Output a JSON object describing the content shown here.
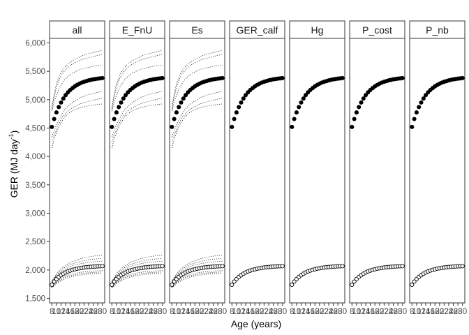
{
  "chart_data": {
    "type": "scatter",
    "facets": [
      "all",
      "E_FnU",
      "Es",
      "GER_calf",
      "Hg",
      "P_cost",
      "P_nb"
    ],
    "xlabel": "Age (years)",
    "ylabel_main": "GER (MJ day",
    "ylabel_sup": "-1",
    "ylabel_close": ")",
    "x_tick_labels": [
      "8",
      "10",
      "12",
      "14",
      "16",
      "18",
      "20",
      "22",
      "24",
      "26",
      "28",
      "30"
    ],
    "xlim": [
      7,
      31
    ],
    "ylim": [
      1420,
      6080
    ],
    "y_ticks": [
      1500,
      2000,
      2500,
      3000,
      3500,
      4000,
      4500,
      5000,
      5500,
      6000
    ],
    "y_tick_labels": [
      "1,500",
      "2,000",
      "2,500",
      "3,000",
      "3,500",
      "4,000",
      "4,500",
      "5,000",
      "5,500",
      "6,000"
    ],
    "x": [
      8,
      9,
      10,
      11,
      12,
      13,
      14,
      15,
      16,
      17,
      18,
      19,
      20,
      21,
      22,
      23,
      24,
      25,
      26,
      27,
      28,
      29,
      30
    ],
    "series": [
      {
        "marker": "filled",
        "values": [
          4520,
          4660,
          4775,
          4870,
          4950,
          5020,
          5080,
          5130,
          5170,
          5205,
          5235,
          5260,
          5282,
          5300,
          5315,
          5328,
          5340,
          5350,
          5358,
          5365,
          5370,
          5375,
          5380
        ]
      },
      {
        "marker": "open",
        "values": [
          1740,
          1795,
          1840,
          1877,
          1908,
          1934,
          1956,
          1974,
          1989,
          2002,
          2013,
          2022,
          2030,
          2037,
          2043,
          2048,
          2052,
          2056,
          2059,
          2062,
          2064,
          2066,
          2068
        ]
      }
    ],
    "uncertainty_facets": [
      "all",
      "E_FnU",
      "Es"
    ],
    "uncertainty": [
      {
        "upper": [
          4850,
          5100,
          5280,
          5400,
          5480,
          5540,
          5590,
          5630,
          5660,
          5690,
          5710,
          5730,
          5750,
          5770,
          5790,
          5800,
          5810,
          5820,
          5830,
          5840,
          5850,
          5860,
          5870
        ],
        "lower": [
          4150,
          4300,
          4420,
          4520,
          4600,
          4660,
          4710,
          4750,
          4780,
          4800,
          4820,
          4840,
          4855,
          4865,
          4875,
          4885,
          4895,
          4900,
          4905,
          4910,
          4915,
          4920,
          4925
        ]
      },
      {
        "upper": [
          4800,
          4950,
          5080,
          5180,
          5260,
          5320,
          5370,
          5410,
          5440,
          5470,
          5490,
          5510,
          5525,
          5540,
          5550,
          5560,
          5570,
          5580,
          5590,
          5595,
          5600,
          5605,
          5610
        ],
        "lower": [
          4350,
          4450,
          4560,
          4650,
          4720,
          4790,
          4840,
          4880,
          4920,
          4950,
          4980,
          5000,
          5030,
          5050,
          5060,
          5080,
          5090,
          5100,
          5110,
          5120,
          5130,
          5140,
          5150
        ]
      },
      {
        "upper": [
          4830,
          5050,
          5220,
          5340,
          5420,
          5480,
          5530,
          5570,
          5600,
          5630,
          5650,
          5670,
          5690,
          5705,
          5720,
          5730,
          5740,
          5750,
          5760,
          5770,
          5780,
          5790,
          5800
        ],
        "lower": [
          4250,
          4380,
          4480,
          4570,
          4650,
          4710,
          4760,
          4800,
          4830,
          4860,
          4880,
          4900,
          4920,
          4935,
          4950,
          4960,
          4970,
          4980,
          4990,
          5000,
          5010,
          5020,
          5030
        ]
      },
      {
        "upper": [
          1800,
          1870,
          1930,
          1980,
          2020,
          2055,
          2085,
          2110,
          2130,
          2150,
          2165,
          2180,
          2192,
          2203,
          2213,
          2222,
          2230,
          2237,
          2243,
          2249,
          2254,
          2258,
          2262
        ],
        "lower": [
          1680,
          1720,
          1755,
          1785,
          1810,
          1830,
          1848,
          1862,
          1875,
          1886,
          1895,
          1903,
          1910,
          1916,
          1921,
          1925,
          1929,
          1932,
          1935,
          1938,
          1940,
          1942,
          1944
        ]
      },
      {
        "upper": [
          1780,
          1840,
          1890,
          1930,
          1965,
          1995,
          2020,
          2040,
          2058,
          2073,
          2086,
          2097,
          2107,
          2115,
          2122,
          2128,
          2134,
          2139,
          2143,
          2147,
          2150,
          2153,
          2156
        ],
        "lower": [
          1700,
          1750,
          1790,
          1825,
          1852,
          1875,
          1893,
          1908,
          1921,
          1932,
          1941,
          1948,
          1955,
          1961,
          1966,
          1970,
          1974,
          1977,
          1980,
          1983,
          1985,
          1987,
          1989
        ]
      },
      {
        "upper": [
          1790,
          1855,
          1910,
          1955,
          1993,
          2025,
          2052,
          2075,
          2094,
          2110,
          2124,
          2136,
          2147,
          2156,
          2164,
          2171,
          2177,
          2183,
          2188,
          2192,
          2196,
          2200,
          2203
        ],
        "lower": [
          1690,
          1735,
          1772,
          1802,
          1828,
          1850,
          1868,
          1883,
          1896,
          1907,
          1916,
          1924,
          1931,
          1937,
          1942,
          1946,
          1950,
          1953,
          1956,
          1958,
          1960,
          1962,
          1964
        ]
      }
    ]
  }
}
